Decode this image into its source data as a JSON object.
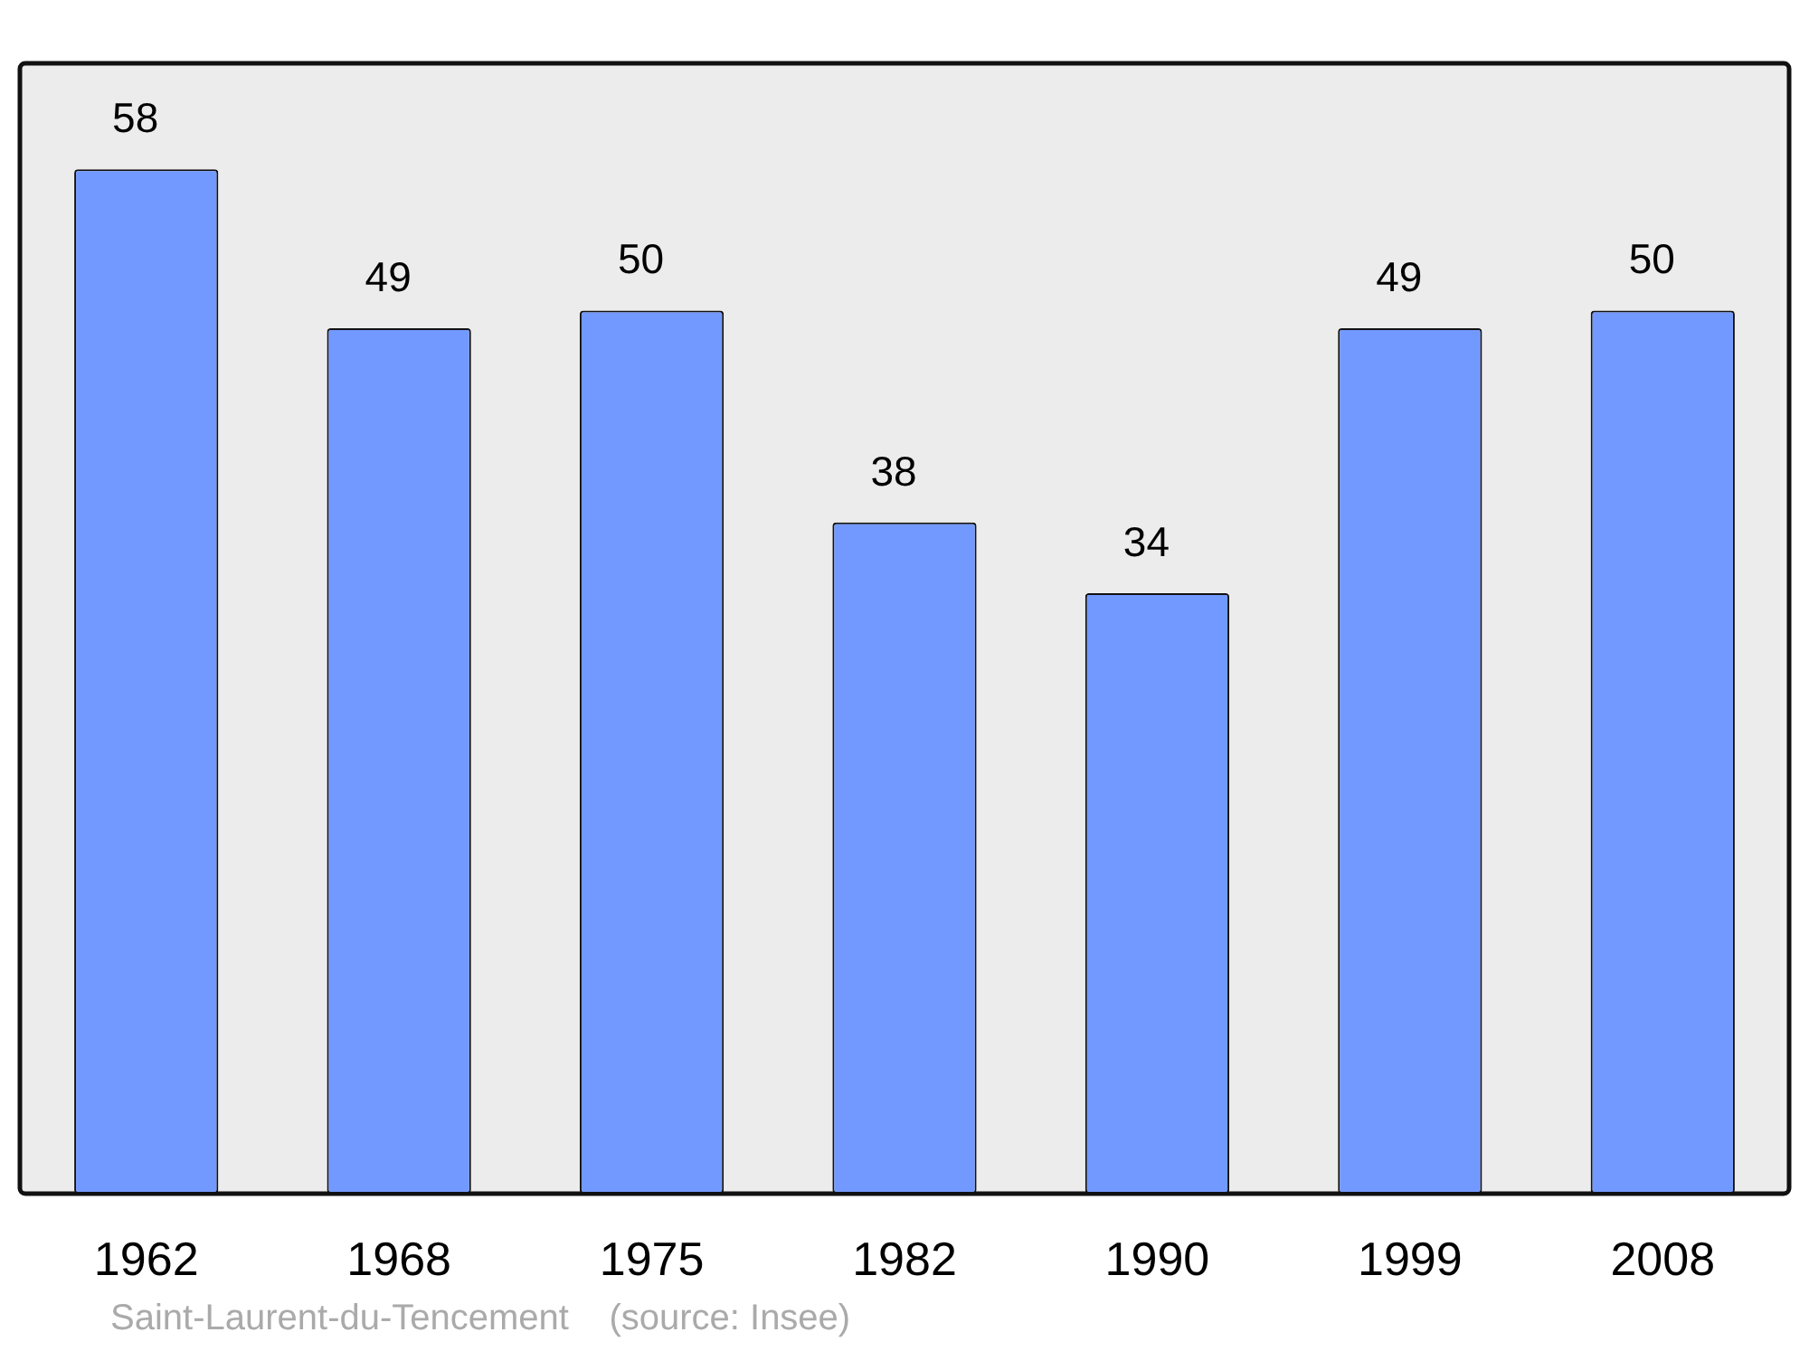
{
  "chart_data": {
    "type": "bar",
    "categories": [
      "1962",
      "1968",
      "1975",
      "1982",
      "1990",
      "1999",
      "2008"
    ],
    "values": [
      58,
      49,
      50,
      38,
      34,
      49,
      50
    ],
    "color": "#7299ff",
    "ylim": [
      0,
      64
    ],
    "tick_labels": "x",
    "data_labels": true,
    "grid": false,
    "legend": false,
    "annotations": [
      "Saint-Laurent-du-Tencement    (source: Insee)"
    ]
  }
}
